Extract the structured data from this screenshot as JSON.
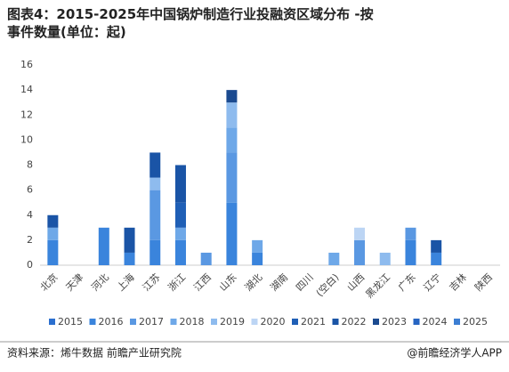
{
  "chart_data": {
    "type": "stacked_bar",
    "title": "图表4：2015-2025年中国锅炉制造行业投融资区域分布 -按事件数量(单位：起)",
    "categories": [
      "北京",
      "天津",
      "河北",
      "上海",
      "江苏",
      "浙江",
      "江西",
      "山东",
      "湖北",
      "湖南",
      "四川",
      "(空白)",
      "山西",
      "黑龙江",
      "广东",
      "辽宁",
      "吉林",
      "陕西"
    ],
    "series": [
      {
        "name": "2015",
        "color": "#2b6fcf",
        "values": [
          0,
          0,
          0,
          0,
          0,
          0,
          0,
          0,
          0,
          0,
          0,
          0,
          0,
          0,
          0,
          0,
          0,
          0
        ]
      },
      {
        "name": "2016",
        "color": "#3a84dc",
        "values": [
          2,
          0,
          3,
          1,
          2,
          2,
          0,
          5,
          1,
          0,
          0,
          0,
          0,
          0,
          2,
          1,
          0,
          0
        ]
      },
      {
        "name": "2017",
        "color": "#5a98e2",
        "values": [
          0,
          0,
          0,
          0,
          4,
          0,
          1,
          4,
          0,
          0,
          0,
          0,
          2,
          0,
          1,
          0,
          0,
          0
        ]
      },
      {
        "name": "2018",
        "color": "#6ea8e8",
        "values": [
          1,
          0,
          0,
          0,
          0,
          1,
          0,
          2,
          1,
          0,
          0,
          1,
          0,
          0,
          0,
          0,
          0,
          0
        ]
      },
      {
        "name": "2019",
        "color": "#8ebbee",
        "values": [
          0,
          0,
          0,
          0,
          1,
          0,
          0,
          2,
          0,
          0,
          0,
          0,
          0,
          1,
          0,
          0,
          0,
          0
        ]
      },
      {
        "name": "2020",
        "color": "#bcd5f4",
        "values": [
          0,
          0,
          0,
          0,
          0,
          0,
          0,
          0,
          0,
          0,
          0,
          0,
          1,
          0,
          0,
          0,
          0,
          0
        ]
      },
      {
        "name": "2021",
        "color": "#1f5fb6",
        "values": [
          0,
          0,
          0,
          0,
          0,
          2,
          0,
          0,
          0,
          0,
          0,
          0,
          0,
          0,
          0,
          0,
          0,
          0
        ]
      },
      {
        "name": "2022",
        "color": "#1a54a6",
        "values": [
          1,
          0,
          0,
          2,
          2,
          3,
          0,
          0,
          0,
          0,
          0,
          0,
          0,
          0,
          0,
          1,
          0,
          0
        ]
      },
      {
        "name": "2023",
        "color": "#1b4a90",
        "values": [
          0,
          0,
          0,
          0,
          0,
          0,
          0,
          1,
          0,
          0,
          0,
          0,
          0,
          0,
          0,
          0,
          0,
          0
        ]
      },
      {
        "name": "2024",
        "color": "#2765c2",
        "values": [
          0,
          0,
          0,
          0,
          0,
          0,
          0,
          0,
          0,
          0,
          0,
          0,
          0,
          0,
          0,
          0,
          0,
          0
        ]
      },
      {
        "name": "2025",
        "color": "#3c7ed3",
        "values": [
          0,
          0,
          0,
          0,
          0,
          0,
          0,
          0,
          0,
          0,
          0,
          0,
          0,
          0,
          0,
          0,
          0,
          0
        ]
      }
    ],
    "ylim": [
      0,
      16
    ],
    "yticks": [
      0,
      2,
      4,
      6,
      8,
      10,
      12,
      14,
      16
    ],
    "grid": false,
    "legend": "bottom",
    "source": "资料来源：烯牛数据 前瞻产业研究院",
    "credit": "@前瞻经济学人APP"
  }
}
